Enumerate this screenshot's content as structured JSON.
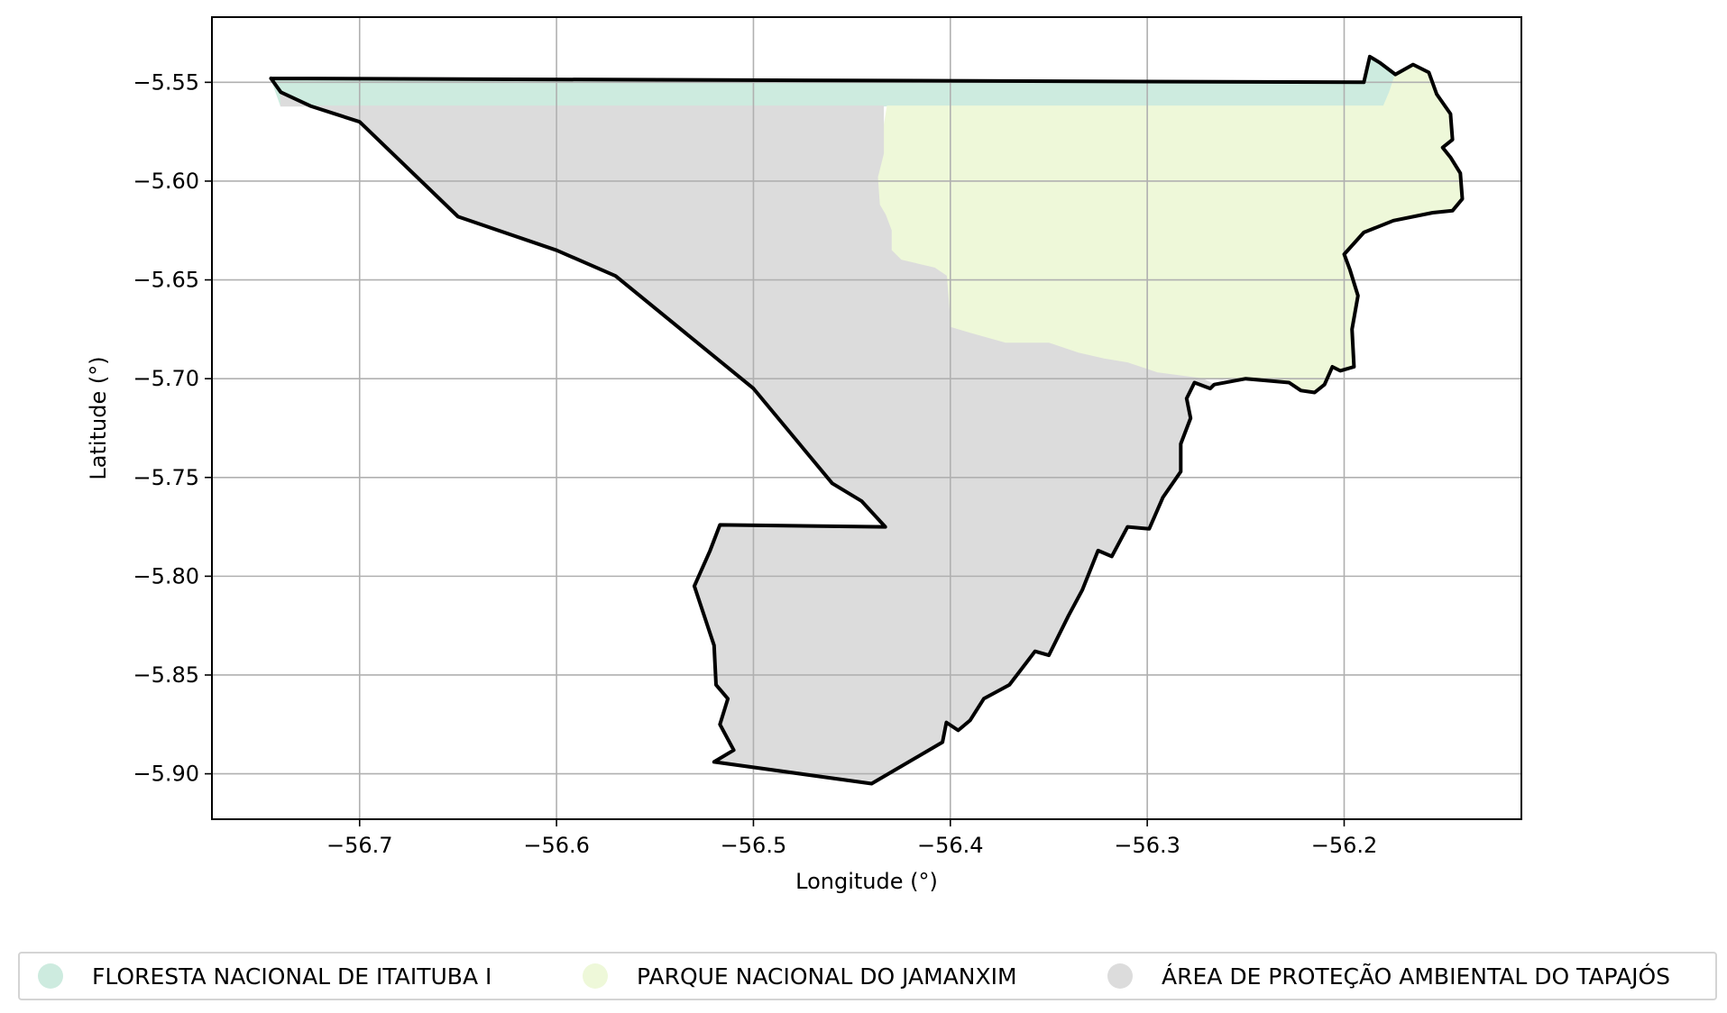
{
  "chart_data": {
    "type": "map",
    "xlabel": "Longitude (°)",
    "ylabel": "Latitude (°)",
    "xlim": [
      -56.775,
      -56.11
    ],
    "ylim": [
      -5.923,
      -5.517
    ],
    "x_ticks": [
      {
        "value": -56.7,
        "label": "−56.7"
      },
      {
        "value": -56.6,
        "label": "−56.6"
      },
      {
        "value": -56.5,
        "label": "−56.5"
      },
      {
        "value": -56.4,
        "label": "−56.4"
      },
      {
        "value": -56.3,
        "label": "−56.3"
      },
      {
        "value": -56.2,
        "label": "−56.2"
      }
    ],
    "y_ticks": [
      {
        "value": -5.55,
        "label": "−5.55"
      },
      {
        "value": -5.6,
        "label": "−5.60"
      },
      {
        "value": -5.65,
        "label": "−5.65"
      },
      {
        "value": -5.7,
        "label": "−5.70"
      },
      {
        "value": -5.75,
        "label": "−5.75"
      },
      {
        "value": -5.8,
        "label": "−5.80"
      },
      {
        "value": -5.85,
        "label": "−5.85"
      },
      {
        "value": -5.9,
        "label": "−5.90"
      }
    ],
    "grid": true,
    "legend_position": "bottom",
    "areas": [
      {
        "name": "FLORESTA NACIONAL DE ITAITUBA I",
        "color": "#cdebdf",
        "polygon": [
          [
            -56.745,
            -5.548
          ],
          [
            -56.19,
            -5.55
          ],
          [
            -56.187,
            -5.537
          ],
          [
            -56.182,
            -5.54
          ],
          [
            -56.174,
            -5.546
          ],
          [
            -56.177,
            -5.555
          ],
          [
            -56.18,
            -5.562
          ],
          [
            -56.74,
            -5.562
          ]
        ]
      },
      {
        "name": "PARQUE NACIONAL DO JAMANXIM",
        "color": "#eef8d9",
        "polygon": [
          [
            -56.432,
            -5.562
          ],
          [
            -56.18,
            -5.562
          ],
          [
            -56.177,
            -5.555
          ],
          [
            -56.174,
            -5.546
          ],
          [
            -56.165,
            -5.541
          ],
          [
            -56.157,
            -5.545
          ],
          [
            -56.153,
            -5.556
          ],
          [
            -56.146,
            -5.566
          ],
          [
            -56.145,
            -5.579
          ],
          [
            -56.15,
            -5.583
          ],
          [
            -56.146,
            -5.588
          ],
          [
            -56.141,
            -5.596
          ],
          [
            -56.14,
            -5.609
          ],
          [
            -56.145,
            -5.615
          ],
          [
            -56.155,
            -5.616
          ],
          [
            -56.175,
            -5.62
          ],
          [
            -56.19,
            -5.626
          ],
          [
            -56.2,
            -5.637
          ],
          [
            -56.197,
            -5.645
          ],
          [
            -56.193,
            -5.658
          ],
          [
            -56.196,
            -5.675
          ],
          [
            -56.195,
            -5.694
          ],
          [
            -56.202,
            -5.696
          ],
          [
            -56.206,
            -5.694
          ],
          [
            -56.21,
            -5.703
          ],
          [
            -56.215,
            -5.707
          ],
          [
            -56.222,
            -5.706
          ],
          [
            -56.228,
            -5.702
          ],
          [
            -56.25,
            -5.7
          ],
          [
            -56.272,
            -5.7
          ],
          [
            -56.295,
            -5.697
          ],
          [
            -56.31,
            -5.692
          ],
          [
            -56.322,
            -5.69
          ],
          [
            -56.335,
            -5.687
          ],
          [
            -56.35,
            -5.682
          ],
          [
            -56.36,
            -5.682
          ],
          [
            -56.372,
            -5.682
          ],
          [
            -56.39,
            -5.677
          ],
          [
            -56.4,
            -5.674
          ],
          [
            -56.401,
            -5.66
          ],
          [
            -56.402,
            -5.648
          ],
          [
            -56.408,
            -5.644
          ],
          [
            -56.425,
            -5.64
          ],
          [
            -56.43,
            -5.635
          ],
          [
            -56.43,
            -5.625
          ],
          [
            -56.433,
            -5.617
          ],
          [
            -56.436,
            -5.612
          ],
          [
            -56.437,
            -5.598
          ],
          [
            -56.434,
            -5.586
          ],
          [
            -56.434,
            -5.574
          ]
        ]
      },
      {
        "name": "ÁREA DE PROTEÇÃO AMBIENTAL DO TAPAJÓS",
        "color": "#dcdcdc",
        "polygon": [
          [
            -56.74,
            -5.562
          ],
          [
            -56.434,
            -5.562
          ],
          [
            -56.434,
            -5.574
          ],
          [
            -56.434,
            -5.586
          ],
          [
            -56.437,
            -5.598
          ],
          [
            -56.436,
            -5.612
          ],
          [
            -56.433,
            -5.617
          ],
          [
            -56.43,
            -5.625
          ],
          [
            -56.43,
            -5.635
          ],
          [
            -56.425,
            -5.64
          ],
          [
            -56.408,
            -5.644
          ],
          [
            -56.402,
            -5.648
          ],
          [
            -56.401,
            -5.66
          ],
          [
            -56.4,
            -5.674
          ],
          [
            -56.39,
            -5.677
          ],
          [
            -56.372,
            -5.682
          ],
          [
            -56.36,
            -5.682
          ],
          [
            -56.35,
            -5.682
          ],
          [
            -56.335,
            -5.687
          ],
          [
            -56.322,
            -5.69
          ],
          [
            -56.31,
            -5.692
          ],
          [
            -56.295,
            -5.697
          ],
          [
            -56.272,
            -5.7
          ],
          [
            -56.266,
            -5.703
          ],
          [
            -56.268,
            -5.705
          ],
          [
            -56.276,
            -5.702
          ],
          [
            -56.28,
            -5.71
          ],
          [
            -56.278,
            -5.72
          ],
          [
            -56.283,
            -5.733
          ],
          [
            -56.283,
            -5.747
          ],
          [
            -56.292,
            -5.76
          ],
          [
            -56.299,
            -5.776
          ],
          [
            -56.31,
            -5.775
          ],
          [
            -56.318,
            -5.79
          ],
          [
            -56.325,
            -5.787
          ],
          [
            -56.333,
            -5.807
          ],
          [
            -56.34,
            -5.82
          ],
          [
            -56.35,
            -5.84
          ],
          [
            -56.357,
            -5.838
          ],
          [
            -56.37,
            -5.855
          ],
          [
            -56.383,
            -5.862
          ],
          [
            -56.39,
            -5.873
          ],
          [
            -56.396,
            -5.878
          ],
          [
            -56.402,
            -5.874
          ],
          [
            -56.404,
            -5.884
          ],
          [
            -56.44,
            -5.905
          ],
          [
            -56.52,
            -5.894
          ],
          [
            -56.51,
            -5.888
          ],
          [
            -56.517,
            -5.875
          ],
          [
            -56.513,
            -5.862
          ],
          [
            -56.519,
            -5.855
          ],
          [
            -56.52,
            -5.835
          ],
          [
            -56.53,
            -5.805
          ],
          [
            -56.522,
            -5.787
          ],
          [
            -56.517,
            -5.774
          ],
          [
            -56.433,
            -5.775
          ],
          [
            -56.445,
            -5.762
          ],
          [
            -56.46,
            -5.753
          ],
          [
            -56.5,
            -5.705
          ],
          [
            -56.57,
            -5.648
          ],
          [
            -56.6,
            -5.635
          ],
          [
            -56.65,
            -5.618
          ],
          [
            -56.7,
            -5.57
          ],
          [
            -56.725,
            -5.562
          ],
          [
            -56.74,
            -5.555
          ]
        ]
      }
    ],
    "outline": [
      [
        -56.745,
        -5.548
      ],
      [
        -56.19,
        -5.55
      ],
      [
        -56.187,
        -5.537
      ],
      [
        -56.182,
        -5.54
      ],
      [
        -56.174,
        -5.546
      ],
      [
        -56.165,
        -5.541
      ],
      [
        -56.157,
        -5.545
      ],
      [
        -56.153,
        -5.556
      ],
      [
        -56.146,
        -5.566
      ],
      [
        -56.145,
        -5.579
      ],
      [
        -56.15,
        -5.583
      ],
      [
        -56.146,
        -5.588
      ],
      [
        -56.141,
        -5.596
      ],
      [
        -56.14,
        -5.609
      ],
      [
        -56.145,
        -5.615
      ],
      [
        -56.155,
        -5.616
      ],
      [
        -56.175,
        -5.62
      ],
      [
        -56.19,
        -5.626
      ],
      [
        -56.2,
        -5.637
      ],
      [
        -56.197,
        -5.645
      ],
      [
        -56.193,
        -5.658
      ],
      [
        -56.196,
        -5.675
      ],
      [
        -56.195,
        -5.694
      ],
      [
        -56.202,
        -5.696
      ],
      [
        -56.206,
        -5.694
      ],
      [
        -56.21,
        -5.703
      ],
      [
        -56.215,
        -5.707
      ],
      [
        -56.222,
        -5.706
      ],
      [
        -56.228,
        -5.702
      ],
      [
        -56.25,
        -5.7
      ],
      [
        -56.266,
        -5.703
      ],
      [
        -56.268,
        -5.705
      ],
      [
        -56.276,
        -5.702
      ],
      [
        -56.28,
        -5.71
      ],
      [
        -56.278,
        -5.72
      ],
      [
        -56.283,
        -5.733
      ],
      [
        -56.283,
        -5.747
      ],
      [
        -56.292,
        -5.76
      ],
      [
        -56.299,
        -5.776
      ],
      [
        -56.31,
        -5.775
      ],
      [
        -56.318,
        -5.79
      ],
      [
        -56.325,
        -5.787
      ],
      [
        -56.333,
        -5.807
      ],
      [
        -56.34,
        -5.82
      ],
      [
        -56.35,
        -5.84
      ],
      [
        -56.357,
        -5.838
      ],
      [
        -56.37,
        -5.855
      ],
      [
        -56.383,
        -5.862
      ],
      [
        -56.39,
        -5.873
      ],
      [
        -56.396,
        -5.878
      ],
      [
        -56.402,
        -5.874
      ],
      [
        -56.404,
        -5.884
      ],
      [
        -56.44,
        -5.905
      ],
      [
        -56.52,
        -5.894
      ],
      [
        -56.51,
        -5.888
      ],
      [
        -56.517,
        -5.875
      ],
      [
        -56.513,
        -5.862
      ],
      [
        -56.519,
        -5.855
      ],
      [
        -56.52,
        -5.835
      ],
      [
        -56.53,
        -5.805
      ],
      [
        -56.522,
        -5.787
      ],
      [
        -56.517,
        -5.774
      ],
      [
        -56.433,
        -5.775
      ],
      [
        -56.445,
        -5.762
      ],
      [
        -56.46,
        -5.753
      ],
      [
        -56.5,
        -5.705
      ],
      [
        -56.57,
        -5.648
      ],
      [
        -56.6,
        -5.635
      ],
      [
        -56.65,
        -5.618
      ],
      [
        -56.7,
        -5.57
      ],
      [
        -56.725,
        -5.562
      ],
      [
        -56.74,
        -5.555
      ],
      [
        -56.745,
        -5.548
      ]
    ]
  },
  "legend": {
    "entries": [
      {
        "label": "FLORESTA NACIONAL DE ITAITUBA I",
        "color": "#cdebdf"
      },
      {
        "label": "PARQUE NACIONAL DO JAMANXIM",
        "color": "#eef8d9"
      },
      {
        "label": "ÁREA DE PROTEÇÃO AMBIENTAL DO TAPAJÓS",
        "color": "#dcdcdc"
      }
    ]
  }
}
